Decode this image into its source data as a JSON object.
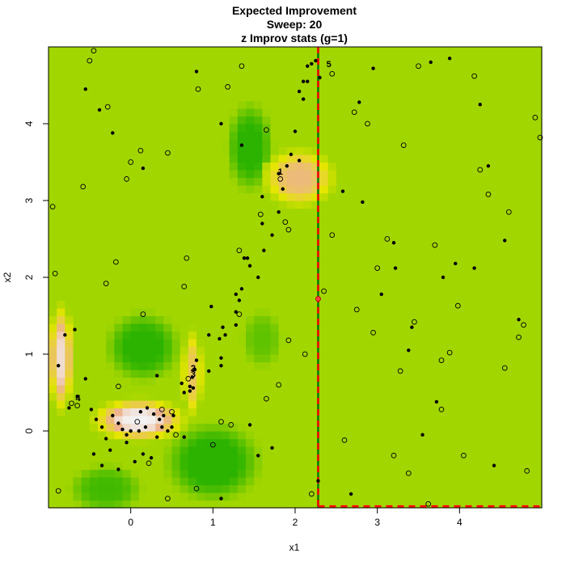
{
  "chart_data": {
    "type": "heatmap",
    "title": [
      "Expected Improvement",
      "Sweep: 20",
      "z Improv stats (g=1)"
    ],
    "xlabel": "x1",
    "ylabel": "x2",
    "xlim": [
      -1,
      5
    ],
    "ylim": [
      -1,
      5
    ],
    "xticks": [
      0,
      1,
      2,
      3,
      4
    ],
    "yticks": [
      0,
      1,
      2,
      3,
      4
    ],
    "grid": false,
    "colors": {
      "background": "#a2d600",
      "low": "#2bb300",
      "mid": "#e6e600",
      "high": "#edb48c",
      "peak": "#f2f2f2",
      "split_line_red": "#ff0000",
      "split_line_green": "#008000"
    },
    "hotspots": [
      {
        "cx": 0.1,
        "cy": 0.15,
        "sx": 0.45,
        "sy": 0.22,
        "amp": 1.0
      },
      {
        "cx": -0.85,
        "cy": 0.95,
        "sx": 0.12,
        "sy": 0.55,
        "amp": 0.95
      },
      {
        "cx": 0.75,
        "cy": 0.75,
        "sx": 0.1,
        "sy": 0.45,
        "amp": 0.7
      },
      {
        "cx": 2.05,
        "cy": 3.3,
        "sx": 0.35,
        "sy": 0.3,
        "amp": 0.8
      }
    ],
    "lowspots": [
      {
        "cx": 0.15,
        "cy": 1.1,
        "sx": 0.35,
        "sy": 0.35,
        "amp": 0.9
      },
      {
        "cx": 1.0,
        "cy": -0.4,
        "sx": 0.45,
        "sy": 0.4,
        "amp": 0.95
      },
      {
        "cx": 1.45,
        "cy": 3.7,
        "sx": 0.22,
        "sy": 0.45,
        "amp": 0.9
      },
      {
        "cx": -0.3,
        "cy": -0.75,
        "sx": 0.35,
        "sy": 0.25,
        "amp": 0.7
      },
      {
        "cx": 1.6,
        "cy": 1.2,
        "sx": 0.2,
        "sy": 0.3,
        "amp": 0.5
      }
    ],
    "split": {
      "x": 2.28,
      "y": -0.98,
      "y_top": 4.98
    },
    "solid_points": [
      [
        -0.55,
        4.45
      ],
      [
        -0.38,
        4.18
      ],
      [
        -0.22,
        3.88
      ],
      [
        0.15,
        3.42
      ],
      [
        0.8,
        4.68
      ],
      [
        1.1,
        4.0
      ],
      [
        1.35,
        3.72
      ],
      [
        1.6,
        3.05
      ],
      [
        1.8,
        3.35
      ],
      [
        1.85,
        3.15
      ],
      [
        1.95,
        3.6
      ],
      [
        2.05,
        3.52
      ],
      [
        1.9,
        3.45
      ],
      [
        2.0,
        3.9
      ],
      [
        2.05,
        4.42
      ],
      [
        2.1,
        4.55
      ],
      [
        2.15,
        4.55
      ],
      [
        2.1,
        4.32
      ],
      [
        2.2,
        4.78
      ],
      [
        2.15,
        4.75
      ],
      [
        2.25,
        4.82
      ],
      [
        2.3,
        4.6
      ],
      [
        2.58,
        3.12
      ],
      [
        2.78,
        4.28
      ],
      [
        2.82,
        2.98
      ],
      [
        2.95,
        4.72
      ],
      [
        3.65,
        4.8
      ],
      [
        3.88,
        4.85
      ],
      [
        4.25,
        4.25
      ],
      [
        1.72,
        2.55
      ],
      [
        1.62,
        2.35
      ],
      [
        1.6,
        2.7
      ],
      [
        1.8,
        2.85
      ],
      [
        1.55,
        2.0
      ],
      [
        1.45,
        2.15
      ],
      [
        1.42,
        2.25
      ],
      [
        1.38,
        2.25
      ],
      [
        1.35,
        1.85
      ],
      [
        1.32,
        1.7
      ],
      [
        1.28,
        1.78
      ],
      [
        1.28,
        1.55
      ],
      [
        1.28,
        1.38
      ],
      [
        1.12,
        1.35
      ],
      [
        1.15,
        1.25
      ],
      [
        1.08,
        1.2
      ],
      [
        0.95,
        1.25
      ],
      [
        0.98,
        1.62
      ],
      [
        0.8,
        0.92
      ],
      [
        0.78,
        0.8
      ],
      [
        0.72,
        0.58
      ],
      [
        0.72,
        0.52
      ],
      [
        0.75,
        0.7
      ],
      [
        0.76,
        0.56
      ],
      [
        0.65,
        0.5
      ],
      [
        0.62,
        0.62
      ],
      [
        0.95,
        0.78
      ],
      [
        1.1,
        0.85
      ],
      [
        1.1,
        0.95
      ],
      [
        -0.88,
        0.85
      ],
      [
        -0.75,
        0.3
      ],
      [
        -0.8,
        1.25
      ],
      [
        -0.68,
        1.32
      ],
      [
        -0.65,
        0.45
      ],
      [
        -0.55,
        0.68
      ],
      [
        -0.48,
        0.28
      ],
      [
        -0.42,
        0.15
      ],
      [
        -0.35,
        0.05
      ],
      [
        -0.3,
        -0.1
      ],
      [
        -0.22,
        0.2
      ],
      [
        -0.15,
        0.1
      ],
      [
        -0.1,
        0.02
      ],
      [
        -0.05,
        -0.05
      ],
      [
        0.0,
        0.0
      ],
      [
        0.1,
        0.0
      ],
      [
        0.18,
        0.05
      ],
      [
        0.2,
        0.3
      ],
      [
        0.28,
        0.22
      ],
      [
        0.35,
        0.15
      ],
      [
        0.4,
        0.2
      ],
      [
        0.32,
        -0.08
      ],
      [
        0.38,
        0.05
      ],
      [
        0.45,
        0.0
      ],
      [
        0.5,
        0.05
      ],
      [
        0.52,
        0.2
      ],
      [
        0.25,
        -0.35
      ],
      [
        0.15,
        -0.3
      ],
      [
        -0.05,
        -0.15
      ],
      [
        -0.25,
        -0.25
      ],
      [
        -0.45,
        -0.3
      ],
      [
        -0.35,
        -0.45
      ],
      [
        -0.15,
        -0.5
      ],
      [
        0.05,
        -0.4
      ],
      [
        0.12,
        0.25
      ],
      [
        0.32,
        0.72
      ],
      [
        0.65,
        -0.08
      ],
      [
        1.45,
        0.08
      ],
      [
        1.72,
        -0.22
      ],
      [
        1.55,
        -0.32
      ],
      [
        1.1,
        -0.88
      ],
      [
        2.28,
        -0.65
      ],
      [
        2.68,
        -0.82
      ],
      [
        3.05,
        1.78
      ],
      [
        3.2,
        2.45
      ],
      [
        3.22,
        2.12
      ],
      [
        3.38,
        1.05
      ],
      [
        3.42,
        1.35
      ],
      [
        3.55,
        -0.05
      ],
      [
        3.72,
        0.38
      ],
      [
        3.8,
        2.0
      ],
      [
        3.95,
        2.18
      ],
      [
        4.18,
        2.12
      ],
      [
        4.42,
        -0.45
      ],
      [
        4.55,
        2.48
      ],
      [
        4.72,
        1.45
      ],
      [
        4.35,
        3.45
      ]
    ],
    "hollow_points": [
      [
        -0.5,
        4.82
      ],
      [
        -0.45,
        4.95
      ],
      [
        -0.28,
        4.22
      ],
      [
        -0.58,
        3.18
      ],
      [
        -0.95,
        2.92
      ],
      [
        -0.92,
        2.05
      ],
      [
        -0.3,
        1.92
      ],
      [
        -0.18,
        2.2
      ],
      [
        -0.05,
        3.28
      ],
      [
        0.0,
        3.5
      ],
      [
        0.12,
        3.65
      ],
      [
        0.45,
        3.62
      ],
      [
        0.82,
        4.45
      ],
      [
        1.18,
        4.48
      ],
      [
        1.35,
        4.75
      ],
      [
        1.65,
        3.92
      ],
      [
        1.58,
        2.82
      ],
      [
        1.88,
        2.72
      ],
      [
        1.92,
        2.62
      ],
      [
        2.45,
        4.65
      ],
      [
        2.72,
        4.15
      ],
      [
        2.88,
        4.0
      ],
      [
        3.32,
        3.72
      ],
      [
        3.5,
        4.75
      ],
      [
        4.18,
        4.62
      ],
      [
        4.25,
        3.4
      ],
      [
        4.35,
        3.08
      ],
      [
        4.6,
        2.85
      ],
      [
        4.92,
        4.08
      ],
      [
        4.98,
        3.82
      ],
      [
        2.45,
        2.55
      ],
      [
        2.35,
        1.82
      ],
      [
        2.75,
        1.58
      ],
      [
        2.95,
        1.28
      ],
      [
        3.0,
        2.12
      ],
      [
        3.12,
        2.5
      ],
      [
        3.28,
        0.78
      ],
      [
        3.45,
        1.42
      ],
      [
        3.7,
        2.42
      ],
      [
        3.78,
        0.92
      ],
      [
        3.88,
        1.02
      ],
      [
        3.98,
        1.63
      ],
      [
        4.55,
        0.82
      ],
      [
        4.72,
        1.22
      ],
      [
        4.78,
        1.38
      ],
      [
        4.82,
        -0.52
      ],
      [
        3.78,
        0.28
      ],
      [
        4.05,
        -0.32
      ],
      [
        3.38,
        -0.55
      ],
      [
        3.2,
        -0.32
      ],
      [
        3.62,
        -0.95
      ],
      [
        2.6,
        -0.12
      ],
      [
        2.2,
        -0.82
      ],
      [
        1.92,
        1.18
      ],
      [
        2.12,
        1.0
      ],
      [
        1.8,
        0.6
      ],
      [
        1.65,
        0.42
      ],
      [
        1.1,
        0.12
      ],
      [
        1.0,
        -0.18
      ],
      [
        0.45,
        -0.88
      ],
      [
        0.8,
        -0.75
      ],
      [
        0.22,
        -0.42
      ],
      [
        0.55,
        -0.05
      ],
      [
        0.5,
        0.25
      ],
      [
        0.38,
        0.28
      ],
      [
        0.08,
        0.12
      ],
      [
        -0.15,
        0.58
      ],
      [
        -0.72,
        0.36
      ],
      [
        -0.65,
        0.33
      ],
      [
        -0.88,
        -0.78
      ],
      [
        0.7,
        0.68
      ],
      [
        0.68,
        2.25
      ],
      [
        0.65,
        1.88
      ],
      [
        1.82,
        3.28
      ],
      [
        1.32,
        2.35
      ],
      [
        1.32,
        1.52
      ],
      [
        0.15,
        1.52
      ],
      [
        1.22,
        0.08
      ]
    ],
    "annotations": [
      {
        "label": "1",
        "x": 1.82,
        "y": 3.38
      },
      {
        "label": "2",
        "x": 0.76,
        "y": 0.82
      },
      {
        "label": "3",
        "x": 0.76,
        "y": 0.74
      },
      {
        "label": "4",
        "x": -0.64,
        "y": 0.43
      },
      {
        "label": "5",
        "x": 2.41,
        "y": 4.78
      }
    ]
  }
}
